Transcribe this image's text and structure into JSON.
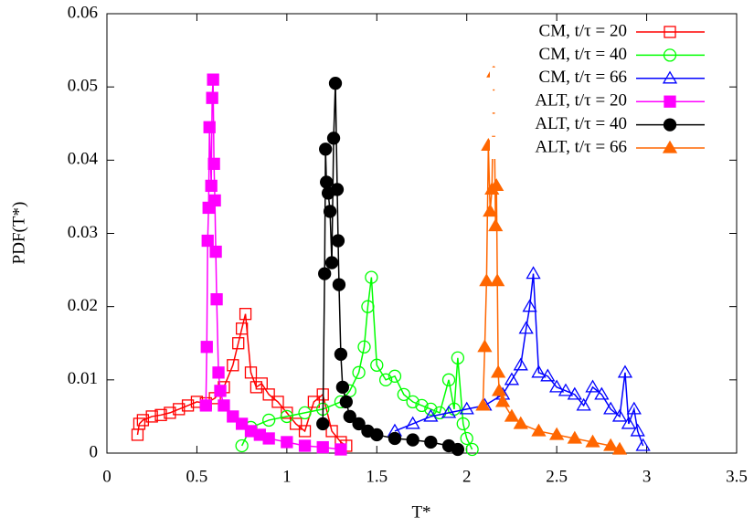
{
  "chart_data": {
    "type": "line",
    "xlabel": "T*",
    "ylabel": "PDF(T*)",
    "xlim": [
      0,
      3.5
    ],
    "xticks": [
      0,
      0.5,
      1,
      1.5,
      2,
      2.5,
      3,
      3.5
    ],
    "ylim": [
      0,
      0.06
    ],
    "yticks": [
      0,
      0.01,
      0.02,
      0.03,
      0.04,
      0.05,
      0.06
    ],
    "legend": "upper right",
    "series": [
      {
        "name": "CM,  t/τ = 20",
        "color": "#ff0000",
        "marker": "square",
        "filled": false,
        "x": [
          0.17,
          0.18,
          0.2,
          0.25,
          0.3,
          0.35,
          0.4,
          0.45,
          0.5,
          0.55,
          0.6,
          0.65,
          0.7,
          0.73,
          0.75,
          0.77,
          0.8,
          0.83,
          0.86,
          0.9,
          0.95,
          1.0,
          1.05,
          1.1,
          1.15,
          1.2,
          1.25,
          1.3,
          1.33
        ],
        "values": [
          0.0025,
          0.004,
          0.0045,
          0.005,
          0.0052,
          0.0055,
          0.006,
          0.0065,
          0.007,
          0.0068,
          0.0075,
          0.009,
          0.012,
          0.015,
          0.017,
          0.019,
          0.011,
          0.009,
          0.0095,
          0.008,
          0.007,
          0.0055,
          0.004,
          0.003,
          0.007,
          0.008,
          0.003,
          0.0015,
          0.001
        ]
      },
      {
        "name": "CM,  t/τ = 40",
        "color": "#00ff00",
        "marker": "circle",
        "filled": false,
        "x": [
          0.75,
          0.8,
          0.9,
          1.0,
          1.1,
          1.2,
          1.3,
          1.35,
          1.4,
          1.43,
          1.45,
          1.47,
          1.5,
          1.55,
          1.6,
          1.65,
          1.7,
          1.75,
          1.8,
          1.85,
          1.9,
          1.93,
          1.95,
          1.98,
          2.0,
          2.03
        ],
        "values": [
          0.001,
          0.0035,
          0.0045,
          0.005,
          0.0055,
          0.006,
          0.007,
          0.0085,
          0.011,
          0.0145,
          0.02,
          0.024,
          0.012,
          0.01,
          0.0105,
          0.008,
          0.007,
          0.0065,
          0.006,
          0.0055,
          0.01,
          0.006,
          0.013,
          0.004,
          0.002,
          0.0005
        ]
      },
      {
        "name": "CM,  t/τ = 66",
        "color": "#0000ff",
        "marker": "triangle",
        "filled": false,
        "x": [
          1.6,
          1.7,
          1.8,
          1.9,
          2.0,
          2.1,
          2.2,
          2.25,
          2.3,
          2.33,
          2.35,
          2.37,
          2.4,
          2.45,
          2.5,
          2.55,
          2.6,
          2.65,
          2.7,
          2.75,
          2.8,
          2.85,
          2.88,
          2.9,
          2.93,
          2.95,
          2.98
        ],
        "values": [
          0.003,
          0.004,
          0.005,
          0.0055,
          0.006,
          0.0065,
          0.008,
          0.01,
          0.012,
          0.017,
          0.02,
          0.0245,
          0.011,
          0.0105,
          0.009,
          0.0085,
          0.008,
          0.0065,
          0.009,
          0.008,
          0.006,
          0.005,
          0.011,
          0.004,
          0.006,
          0.003,
          0.001
        ]
      },
      {
        "name": "ALT, t/τ = 20",
        "color": "#ff00ff",
        "marker": "square",
        "filled": true,
        "x": [
          0.55,
          0.555,
          0.56,
          0.565,
          0.57,
          0.58,
          0.585,
          0.59,
          0.595,
          0.6,
          0.605,
          0.61,
          0.62,
          0.63,
          0.65,
          0.7,
          0.75,
          0.8,
          0.85,
          0.9,
          1.0,
          1.1,
          1.2,
          1.3
        ],
        "values": [
          0.0065,
          0.0145,
          0.029,
          0.0335,
          0.0445,
          0.0365,
          0.0485,
          0.051,
          0.0395,
          0.0345,
          0.0275,
          0.021,
          0.011,
          0.0085,
          0.0065,
          0.005,
          0.004,
          0.003,
          0.0025,
          0.002,
          0.0015,
          0.001,
          0.0008,
          0.0005
        ]
      },
      {
        "name": "ALT, t/τ = 40",
        "color": "#000000",
        "marker": "circle",
        "filled": true,
        "x": [
          1.2,
          1.21,
          1.215,
          1.22,
          1.23,
          1.24,
          1.25,
          1.26,
          1.27,
          1.28,
          1.285,
          1.29,
          1.3,
          1.31,
          1.33,
          1.35,
          1.4,
          1.45,
          1.5,
          1.6,
          1.7,
          1.8,
          1.9,
          1.95
        ],
        "values": [
          0.004,
          0.0245,
          0.0415,
          0.037,
          0.0355,
          0.033,
          0.026,
          0.043,
          0.0505,
          0.036,
          0.029,
          0.023,
          0.0135,
          0.009,
          0.007,
          0.005,
          0.004,
          0.003,
          0.0025,
          0.002,
          0.0018,
          0.0015,
          0.001,
          0.0005
        ]
      },
      {
        "name": "ALT, t/τ = 66",
        "color": "#ff6600",
        "marker": "triangle",
        "filled": true,
        "x": [
          2.09,
          2.1,
          2.11,
          2.12,
          2.13,
          2.14,
          2.15,
          2.16,
          2.165,
          2.17,
          2.175,
          2.18,
          2.2,
          2.25,
          2.3,
          2.4,
          2.5,
          2.6,
          2.7,
          2.8,
          2.85
        ],
        "values": [
          0.0065,
          0.0145,
          0.0235,
          0.042,
          0.033,
          0.036,
          0.052,
          0.031,
          0.0365,
          0.0235,
          0.011,
          0.0085,
          0.007,
          0.005,
          0.004,
          0.003,
          0.0025,
          0.002,
          0.0015,
          0.001,
          0.0005
        ]
      }
    ]
  }
}
